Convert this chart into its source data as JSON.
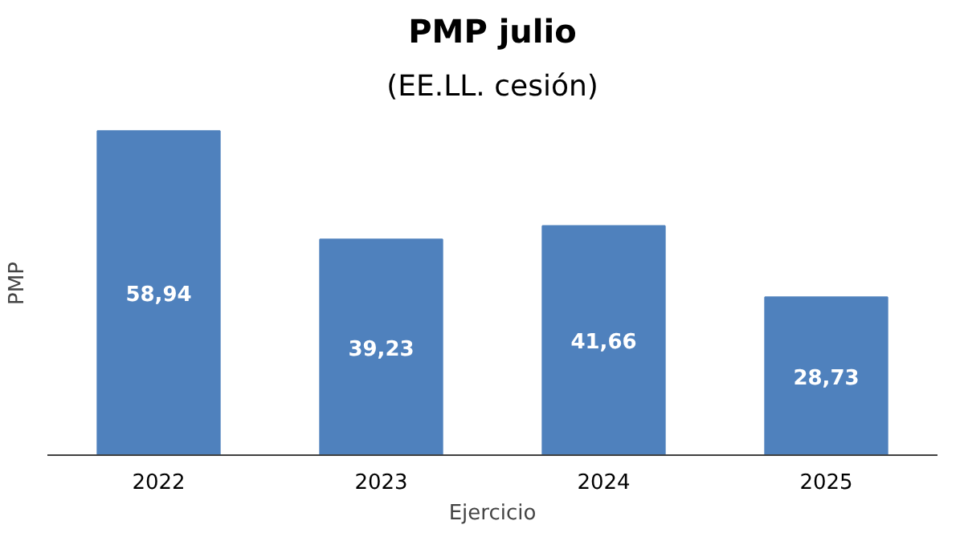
{
  "chart_data": {
    "type": "bar",
    "title": "PMP julio",
    "subtitle": "(EE.LL. cesión)",
    "xlabel": "Ejercicio",
    "ylabel": "PMP",
    "categories": [
      "2022",
      "2023",
      "2024",
      "2025"
    ],
    "values": [
      58.94,
      39.23,
      41.66,
      28.73
    ],
    "value_labels": [
      "58,94",
      "39,23",
      "41,66",
      "28,73"
    ],
    "color": "#4f81bd",
    "grid": false
  }
}
